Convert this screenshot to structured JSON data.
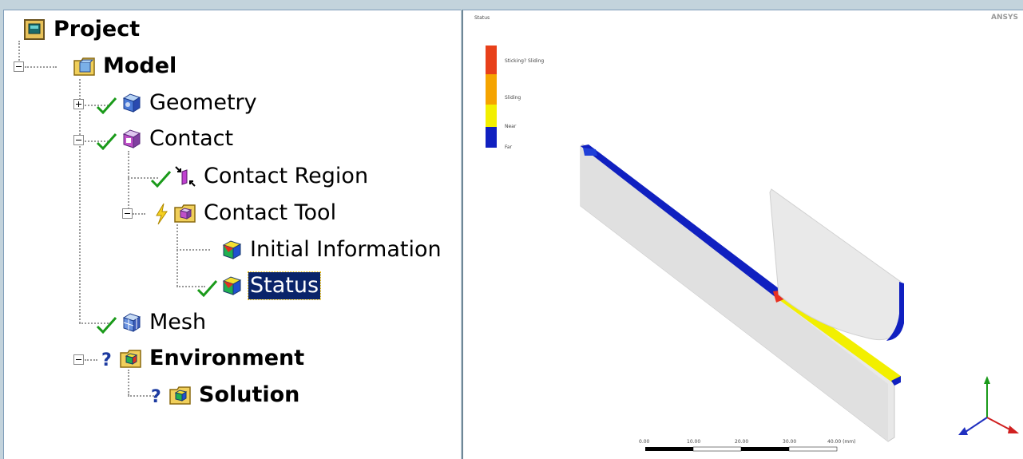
{
  "tree": {
    "nodes": [
      {
        "id": "project",
        "label": "Project",
        "bold": true,
        "icon": "project-icon"
      },
      {
        "id": "model",
        "label": "Model",
        "bold": true,
        "icon": "model-folder-icon",
        "expander": "minus"
      },
      {
        "id": "geometry",
        "label": "Geometry",
        "bold": false,
        "icon": "geometry-icon",
        "status": "checkmark",
        "expander": "plus"
      },
      {
        "id": "contact",
        "label": "Contact",
        "bold": false,
        "icon": "contact-icon",
        "status": "checkmark",
        "expander": "minus"
      },
      {
        "id": "contact-region",
        "label": "Contact Region",
        "bold": false,
        "icon": "contact-region-icon",
        "status": "checkmark"
      },
      {
        "id": "contact-tool",
        "label": "Contact Tool",
        "bold": false,
        "icon": "contact-tool-folder-icon",
        "status": "lightning",
        "expander": "minus"
      },
      {
        "id": "initial-information",
        "label": "Initial Information",
        "bold": false,
        "icon": "result-icon"
      },
      {
        "id": "status",
        "label": "Status",
        "bold": false,
        "icon": "result-icon",
        "status": "checkmark",
        "selected": true
      },
      {
        "id": "mesh",
        "label": "Mesh",
        "bold": false,
        "icon": "mesh-icon",
        "status": "checkmark"
      },
      {
        "id": "environment",
        "label": "Environment",
        "bold": true,
        "icon": "environment-folder-icon",
        "status": "question",
        "expander": "minus"
      },
      {
        "id": "solution",
        "label": "Solution",
        "bold": true,
        "icon": "solution-folder-icon",
        "status": "question"
      }
    ]
  },
  "viewer": {
    "title": "Status",
    "brand": "ANSYS",
    "legend": [
      {
        "label": "Sticking? Sliding",
        "color": "#e8401a"
      },
      {
        "label": "Sliding",
        "color": "#f5a400"
      },
      {
        "label": "Near",
        "color": "#f2ef00"
      },
      {
        "label": "Far",
        "color": "#1020c0"
      }
    ],
    "scale_labels": [
      "0.00",
      "10.00",
      "20.00",
      "30.00",
      "40.00 (mm)"
    ]
  },
  "colors": {
    "selection": "#0a246a",
    "checkmark": "#1a9a1a",
    "background": "#c3d3dc"
  }
}
